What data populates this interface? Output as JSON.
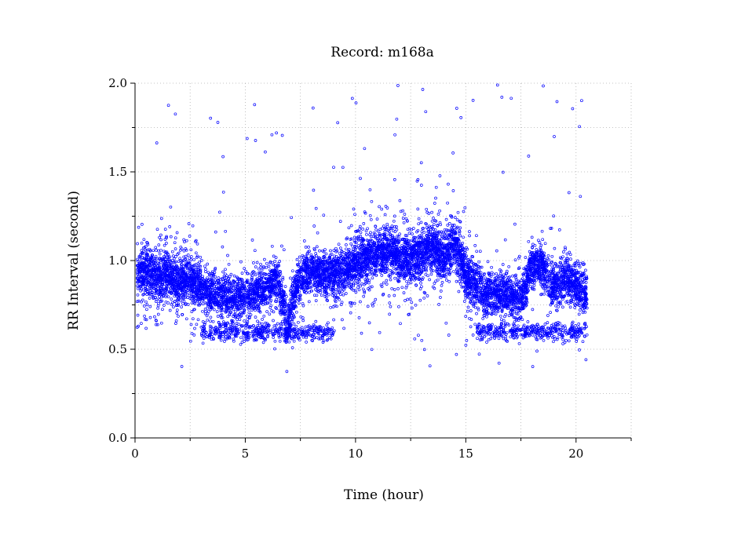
{
  "chart_data": {
    "type": "scatter",
    "title": "Record:  m168a",
    "xlabel": "Time (hour)",
    "ylabel": "RR Interval (second)",
    "xlim": [
      0,
      22.5
    ],
    "ylim": [
      0,
      2.0
    ],
    "x_ticks": [
      0,
      5,
      10,
      15,
      20
    ],
    "x_tick_labels": [
      "0",
      "5",
      "10",
      "15",
      "20"
    ],
    "x_minor_ticks": [
      2.5,
      7.5,
      12.5,
      17.5,
      22.5
    ],
    "y_ticks": [
      0,
      0.5,
      1.0,
      1.5,
      2.0
    ],
    "y_tick_labels": [
      "0.0",
      "0.5",
      "1.0",
      "1.5",
      "2.0"
    ],
    "y_minor_ticks": [
      0.25,
      0.75,
      1.25,
      1.75
    ],
    "grid": true,
    "marker": "hollow-circle",
    "series": [
      {
        "color": "#0000ff",
        "x_range": [
          0.1,
          20.5
        ],
        "typical_y_range": [
          0.55,
          1.3
        ],
        "points": [
          {
            "t": 0.0,
            "rr": 0.92
          },
          {
            "t": 0.5,
            "rr": 0.95
          },
          {
            "t": 1.0,
            "rr": 0.9
          },
          {
            "t": 1.5,
            "rr": 0.92
          },
          {
            "t": 2.0,
            "rr": 0.88
          },
          {
            "t": 2.5,
            "rr": 0.9
          },
          {
            "t": 3.0,
            "rr": 0.85
          },
          {
            "t": 3.5,
            "rr": 0.82
          },
          {
            "t": 4.0,
            "rr": 0.8
          },
          {
            "t": 4.5,
            "rr": 0.78
          },
          {
            "t": 5.0,
            "rr": 0.8
          },
          {
            "t": 5.5,
            "rr": 0.82
          },
          {
            "t": 6.0,
            "rr": 0.85
          },
          {
            "t": 6.5,
            "rr": 0.9
          },
          {
            "t": 6.9,
            "rr": 0.62
          },
          {
            "t": 7.2,
            "rr": 0.8
          },
          {
            "t": 7.5,
            "rr": 0.9
          },
          {
            "t": 8.0,
            "rr": 0.95
          },
          {
            "t": 8.5,
            "rr": 0.92
          },
          {
            "t": 9.0,
            "rr": 0.92
          },
          {
            "t": 9.5,
            "rr": 0.95
          },
          {
            "t": 10.0,
            "rr": 0.98
          },
          {
            "t": 10.5,
            "rr": 1.02
          },
          {
            "t": 11.0,
            "rr": 1.05
          },
          {
            "t": 11.5,
            "rr": 1.05
          },
          {
            "t": 12.0,
            "rr": 1.02
          },
          {
            "t": 12.5,
            "rr": 1.0
          },
          {
            "t": 13.0,
            "rr": 1.05
          },
          {
            "t": 13.5,
            "rr": 1.08
          },
          {
            "t": 14.0,
            "rr": 1.0
          },
          {
            "t": 14.5,
            "rr": 1.1
          },
          {
            "t": 15.0,
            "rr": 0.92
          },
          {
            "t": 15.5,
            "rr": 0.85
          },
          {
            "t": 16.0,
            "rr": 0.8
          },
          {
            "t": 16.5,
            "rr": 0.82
          },
          {
            "t": 17.0,
            "rr": 0.8
          },
          {
            "t": 17.5,
            "rr": 0.78
          },
          {
            "t": 18.0,
            "rr": 0.98
          },
          {
            "t": 18.5,
            "rr": 0.95
          },
          {
            "t": 19.0,
            "rr": 0.85
          },
          {
            "t": 19.5,
            "rr": 0.9
          },
          {
            "t": 20.0,
            "rr": 0.85
          },
          {
            "t": 20.5,
            "rr": 0.82
          }
        ]
      }
    ]
  }
}
